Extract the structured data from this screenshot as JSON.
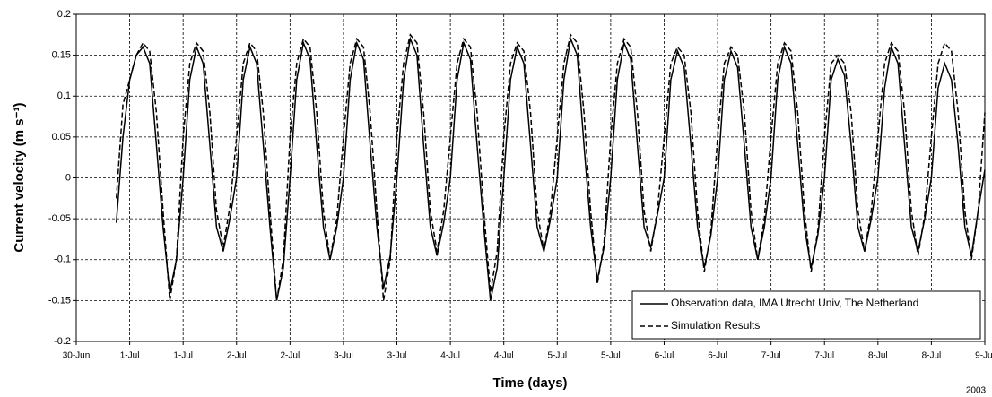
{
  "chart_data": {
    "type": "line",
    "y_label": "Current velocity (m s⁻¹)",
    "x_label": "Time (days)",
    "annotation": "2003",
    "xlim": [
      0,
      8.5
    ],
    "xticks": [
      {
        "value": 0,
        "label": "30-Jun"
      },
      {
        "value": 0.5,
        "label": "1-Jul"
      },
      {
        "value": 1,
        "label": "1-Jul"
      },
      {
        "value": 1.5,
        "label": "2-Jul"
      },
      {
        "value": 2,
        "label": "2-Jul"
      },
      {
        "value": 2.5,
        "label": "3-Jul"
      },
      {
        "value": 3,
        "label": "3-Jul"
      },
      {
        "value": 3.5,
        "label": "4-Jul"
      },
      {
        "value": 4,
        "label": "4-Jul"
      },
      {
        "value": 4.5,
        "label": "5-Jul"
      },
      {
        "value": 5,
        "label": "5-Jul"
      },
      {
        "value": 5.5,
        "label": "6-Jul"
      },
      {
        "value": 6,
        "label": "6-Jul"
      },
      {
        "value": 6.5,
        "label": "7-Jul"
      },
      {
        "value": 7,
        "label": "7-Jul"
      },
      {
        "value": 7.5,
        "label": "8-Jul"
      },
      {
        "value": 8,
        "label": "8-Jul"
      },
      {
        "value": 8.5,
        "label": "9-Jul"
      }
    ],
    "ylim": [
      -0.2,
      0.2
    ],
    "yticks": [
      0.2,
      0.15,
      0.1,
      0.05,
      0,
      -0.05,
      -0.1,
      -0.15,
      -0.2
    ],
    "grid": true,
    "legend": "lower right",
    "x": [
      0.375,
      0.4375,
      0.5,
      0.5625,
      0.625,
      0.6875,
      0.75,
      0.8125,
      0.875,
      0.9375,
      1,
      1.0625,
      1.125,
      1.1875,
      1.25,
      1.3125,
      1.375,
      1.4375,
      1.5,
      1.5625,
      1.625,
      1.6875,
      1.75,
      1.8125,
      1.875,
      1.9375,
      2,
      2.0625,
      2.125,
      2.1875,
      2.25,
      2.3125,
      2.375,
      2.4375,
      2.5,
      2.5625,
      2.625,
      2.6875,
      2.75,
      2.8125,
      2.875,
      2.9375,
      3,
      3.0625,
      3.125,
      3.1875,
      3.25,
      3.3125,
      3.375,
      3.4375,
      3.5,
      3.5625,
      3.625,
      3.6875,
      3.75,
      3.8125,
      3.875,
      3.9375,
      4,
      4.0625,
      4.125,
      4.1875,
      4.25,
      4.3125,
      4.375,
      4.4375,
      4.5,
      4.5625,
      4.625,
      4.6875,
      4.75,
      4.8125,
      4.875,
      4.9375,
      5,
      5.0625,
      5.125,
      5.1875,
      5.25,
      5.3125,
      5.375,
      5.4375,
      5.5,
      5.5625,
      5.625,
      5.6875,
      5.75,
      5.8125,
      5.875,
      5.9375,
      6,
      6.0625,
      6.125,
      6.1875,
      6.25,
      6.3125,
      6.375,
      6.4375,
      6.5,
      6.5625,
      6.625,
      6.6875,
      6.75,
      6.8125,
      6.875,
      6.9375,
      7,
      7.0625,
      7.125,
      7.1875,
      7.25,
      7.3125,
      7.375,
      7.4375,
      7.5,
      7.5625,
      7.625,
      7.6875,
      7.75,
      7.8125,
      7.875,
      7.9375,
      8,
      8.0625,
      8.125,
      8.1875,
      8.25,
      8.3125,
      8.375,
      8.4375,
      8.5
    ],
    "series": [
      {
        "name": "Observation data, IMA Utrecht Univ, The Netherland",
        "color": "#000000",
        "dash": false,
        "values": [
          -0.055,
          0.05,
          0.12,
          0.15,
          0.16,
          0.14,
          0.04,
          -0.06,
          -0.14,
          -0.1,
          0,
          0.12,
          0.16,
          0.14,
          0.04,
          -0.06,
          -0.09,
          -0.05,
          0,
          0.12,
          0.16,
          0.14,
          0.04,
          -0.06,
          -0.15,
          -0.11,
          0,
          0.12,
          0.165,
          0.145,
          0.04,
          -0.06,
          -0.1,
          -0.06,
          0,
          0.12,
          0.165,
          0.145,
          0.04,
          -0.06,
          -0.135,
          -0.095,
          0,
          0.12,
          0.17,
          0.15,
          0.04,
          -0.06,
          -0.095,
          -0.055,
          0,
          0.12,
          0.165,
          0.145,
          0.04,
          -0.06,
          -0.15,
          -0.11,
          0,
          0.12,
          0.16,
          0.14,
          0.04,
          -0.06,
          -0.09,
          -0.05,
          0,
          0.12,
          0.17,
          0.15,
          0.04,
          -0.06,
          -0.125,
          -0.085,
          0,
          0.12,
          0.165,
          0.145,
          0.04,
          -0.06,
          -0.085,
          -0.045,
          0,
          0.12,
          0.155,
          0.135,
          0.04,
          -0.06,
          -0.11,
          -0.07,
          0,
          0.12,
          0.155,
          0.135,
          0.04,
          -0.06,
          -0.1,
          -0.06,
          0,
          0.12,
          0.16,
          0.14,
          0.04,
          -0.06,
          -0.11,
          -0.07,
          0,
          0.12,
          0.145,
          0.125,
          0.04,
          -0.06,
          -0.09,
          -0.05,
          0,
          0.11,
          0.16,
          0.14,
          0.04,
          -0.06,
          -0.09,
          -0.05,
          0,
          0.11,
          0.14,
          0.12,
          0.04,
          -0.06,
          -0.095,
          -0.04,
          0.01
        ]
      },
      {
        "name": "Simulation Results",
        "color": "#000000",
        "dash": true,
        "values": [
          -0.025,
          0.09,
          0.12,
          0.15,
          0.165,
          0.155,
          0.08,
          -0.04,
          -0.15,
          -0.1,
          0.05,
          0.14,
          0.165,
          0.155,
          0.08,
          -0.04,
          -0.085,
          -0.035,
          0.05,
          0.14,
          0.165,
          0.155,
          0.08,
          -0.04,
          -0.15,
          -0.1,
          0.05,
          0.14,
          0.17,
          0.16,
          0.08,
          -0.04,
          -0.1,
          -0.05,
          0.05,
          0.14,
          0.17,
          0.16,
          0.08,
          -0.04,
          -0.15,
          -0.1,
          0.05,
          0.14,
          0.175,
          0.165,
          0.08,
          -0.04,
          -0.09,
          -0.04,
          0.05,
          0.14,
          0.17,
          0.16,
          0.08,
          -0.04,
          -0.14,
          -0.09,
          0.05,
          0.14,
          0.165,
          0.155,
          0.08,
          -0.04,
          -0.09,
          -0.04,
          0.05,
          0.14,
          0.175,
          0.165,
          0.08,
          -0.04,
          -0.13,
          -0.08,
          0.05,
          0.14,
          0.17,
          0.16,
          0.08,
          -0.04,
          -0.09,
          -0.04,
          0.05,
          0.14,
          0.16,
          0.15,
          0.08,
          -0.04,
          -0.115,
          -0.065,
          0.05,
          0.14,
          0.16,
          0.15,
          0.08,
          -0.04,
          -0.1,
          -0.05,
          0.05,
          0.14,
          0.165,
          0.155,
          0.08,
          -0.04,
          -0.115,
          -0.065,
          0.05,
          0.14,
          0.15,
          0.14,
          0.08,
          -0.04,
          -0.09,
          -0.04,
          0.05,
          0.14,
          0.165,
          0.155,
          0.08,
          -0.04,
          -0.095,
          -0.045,
          0.05,
          0.14,
          0.165,
          0.155,
          0.08,
          -0.04,
          -0.1,
          -0.04,
          0.08
        ]
      }
    ]
  }
}
